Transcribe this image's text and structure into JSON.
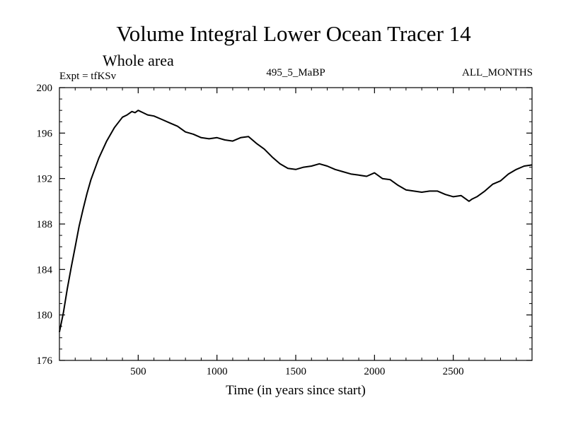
{
  "chart_data": {
    "type": "line",
    "title": "Volume Integral Lower Ocean Tracer 14",
    "subtitle": "Whole area",
    "meta_left": "Expt = tfKSv",
    "meta_center": "495_5_MaBP",
    "meta_right": "ALL_MONTHS",
    "xlabel": "Time (in years since start)",
    "ylabel": "",
    "xlim": [
      0,
      3000
    ],
    "ylim": [
      176,
      200
    ],
    "x_ticks": [
      500,
      1000,
      1500,
      2000,
      2500
    ],
    "y_ticks": [
      176,
      180,
      184,
      188,
      192,
      196,
      200
    ],
    "x_minor_step": 100,
    "y_minor_step": 1,
    "grid": false,
    "series": [
      {
        "name": "Lower Ocean Tracer 14",
        "color": "#000000",
        "x": [
          0,
          25,
          50,
          75,
          100,
          125,
          150,
          175,
          200,
          250,
          300,
          350,
          400,
          430,
          460,
          480,
          500,
          530,
          560,
          600,
          650,
          700,
          750,
          800,
          850,
          900,
          950,
          1000,
          1050,
          1100,
          1150,
          1200,
          1250,
          1300,
          1350,
          1400,
          1450,
          1500,
          1550,
          1600,
          1650,
          1700,
          1750,
          1800,
          1850,
          1900,
          1950,
          2000,
          2050,
          2100,
          2150,
          2200,
          2250,
          2300,
          2350,
          2400,
          2450,
          2500,
          2550,
          2600,
          2620,
          2650,
          2700,
          2750,
          2800,
          2850,
          2900,
          2950,
          3000
        ],
        "y": [
          178.5,
          180.2,
          182.3,
          184.2,
          186.0,
          187.8,
          189.3,
          190.7,
          191.9,
          193.8,
          195.3,
          196.5,
          197.4,
          197.6,
          197.9,
          197.8,
          198.0,
          197.8,
          197.6,
          197.5,
          197.2,
          196.9,
          196.6,
          196.1,
          195.9,
          195.6,
          195.5,
          195.6,
          195.4,
          195.3,
          195.6,
          195.7,
          195.1,
          194.6,
          193.9,
          193.3,
          192.9,
          192.8,
          193.0,
          193.1,
          193.3,
          193.1,
          192.8,
          192.6,
          192.4,
          192.3,
          192.2,
          192.5,
          192.0,
          191.9,
          191.4,
          191.0,
          190.9,
          190.8,
          190.9,
          190.9,
          190.6,
          190.4,
          190.5,
          190.0,
          190.2,
          190.4,
          190.9,
          191.5,
          191.8,
          192.4,
          192.8,
          193.1,
          193.2
        ]
      }
    ]
  }
}
